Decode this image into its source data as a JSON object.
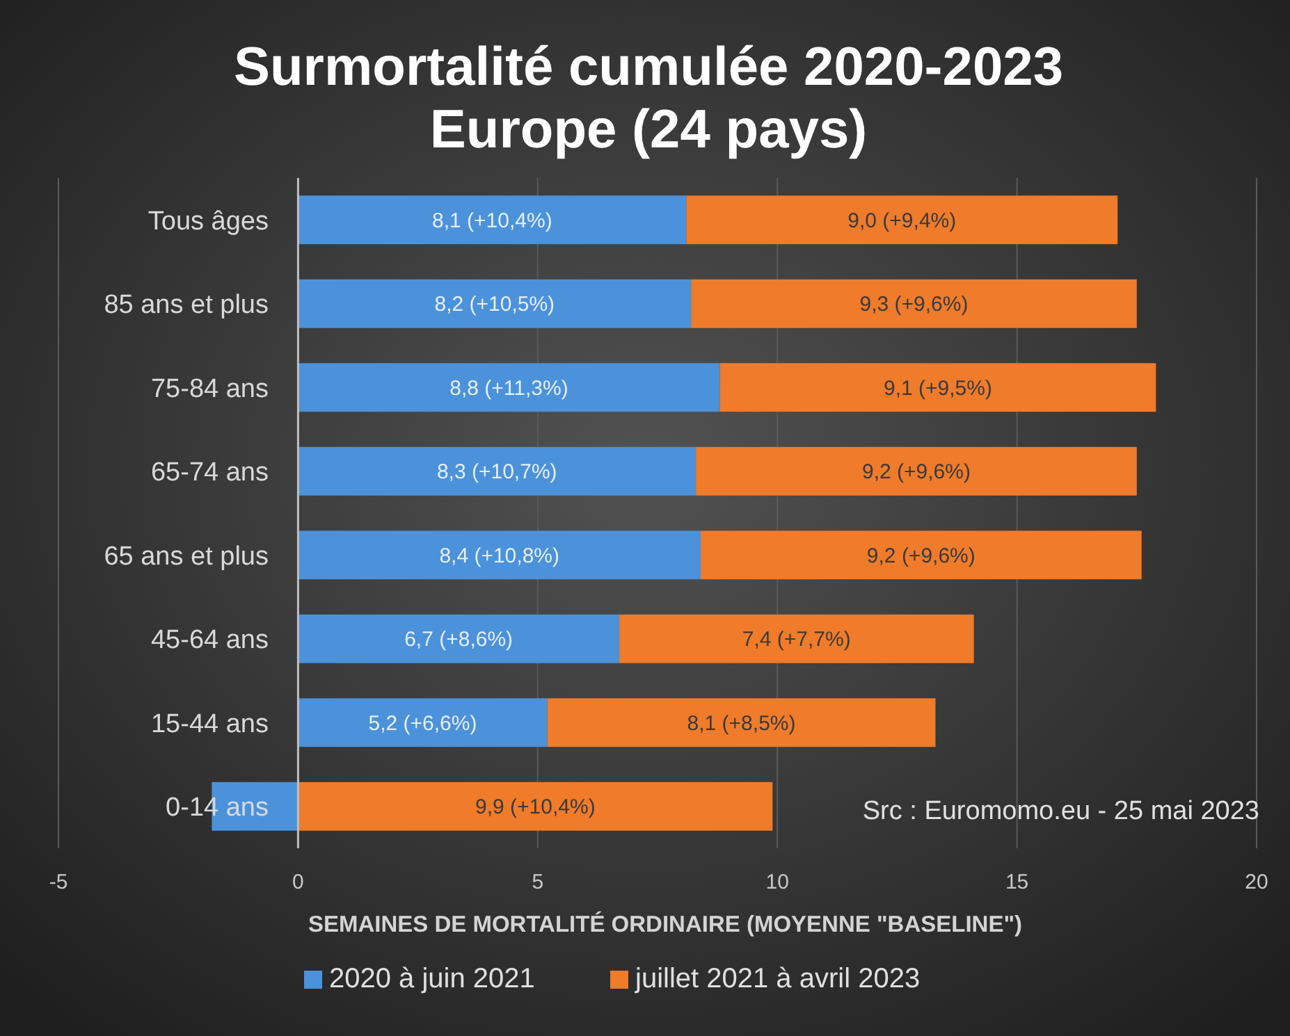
{
  "chart_data": {
    "type": "bar",
    "orientation": "horizontal",
    "stacked": true,
    "title": "Surmortalité cumulée 2020-2023",
    "subtitle": "Europe (24 pays)",
    "xlabel": "SEMAINES DE MORTALITÉ ORDINAIRE (MOYENNE \"BASELINE\")",
    "categories": [
      "Tous âges",
      "85 ans et plus",
      "75-84 ans",
      "65-74 ans",
      "65 ans et plus",
      "45-64 ans",
      "15-44 ans",
      "0-14 ans"
    ],
    "series": [
      {
        "name": "2020 à juin 2021",
        "color": "#4b92db",
        "values": [
          8.1,
          8.2,
          8.8,
          8.3,
          8.4,
          6.7,
          5.2,
          -1.8
        ],
        "value_labels": [
          "8,1 (+10,4%)",
          "8,2 (+10,5%)",
          "8,8 (+11,3%)",
          "8,3 (+10,7%)",
          "8,4 (+10,8%)",
          "6,7 (+8,6%)",
          "5,2 (+6,6%)",
          null
        ]
      },
      {
        "name": "juillet 2021 à avril 2023",
        "color": "#ef7b2b",
        "values": [
          9.0,
          9.3,
          9.1,
          9.2,
          9.2,
          7.4,
          8.1,
          9.9
        ],
        "value_labels": [
          "9,0 (+9,4%)",
          "9,3 (+9,6%)",
          "9,1 (+9,5%)",
          "9,2 (+9,6%)",
          "9,2 (+9,6%)",
          "7,4 (+7,7%)",
          "8,1 (+8,5%)",
          "9,9 (+10,4%)"
        ]
      }
    ],
    "xlim": [
      -5,
      20
    ],
    "xticks": [
      -5,
      0,
      5,
      10,
      15,
      20
    ],
    "grid": "x",
    "legend": "bottom",
    "annotations": [
      "Src : Euromomo.eu - 25 mai 2023"
    ]
  }
}
